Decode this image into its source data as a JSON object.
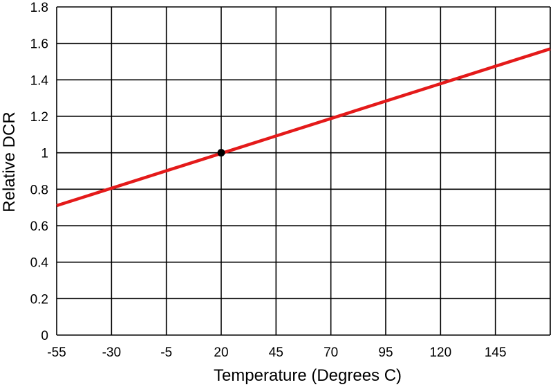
{
  "chart_data": {
    "type": "line",
    "title": "",
    "xlabel": "Temperature (Degrees C)",
    "ylabel": "Relative DCR",
    "xlim": [
      -55,
      170
    ],
    "ylim": [
      0,
      1.8
    ],
    "x_ticks": [
      -55,
      -30,
      -5,
      20,
      45,
      70,
      95,
      120,
      145
    ],
    "x_tick_labels": [
      "-55",
      "-30",
      "-5",
      "20",
      "45",
      "70",
      "95",
      "120",
      "145"
    ],
    "y_ticks": [
      0,
      0.2,
      0.4,
      0.6,
      0.8,
      1,
      1.2,
      1.4,
      1.6,
      1.8
    ],
    "y_tick_labels": [
      "0",
      "0.2",
      "0.4",
      "0.6",
      "0.8",
      "1",
      "1.2",
      "1.4",
      "1.6",
      "1.8"
    ],
    "grid": true,
    "series": [
      {
        "color": "#e41a1a",
        "x": [
          -55,
          170
        ],
        "y": [
          0.71,
          1.57
        ]
      }
    ],
    "reference_point": {
      "x": 20,
      "y": 1.0,
      "color": "#000000"
    }
  }
}
